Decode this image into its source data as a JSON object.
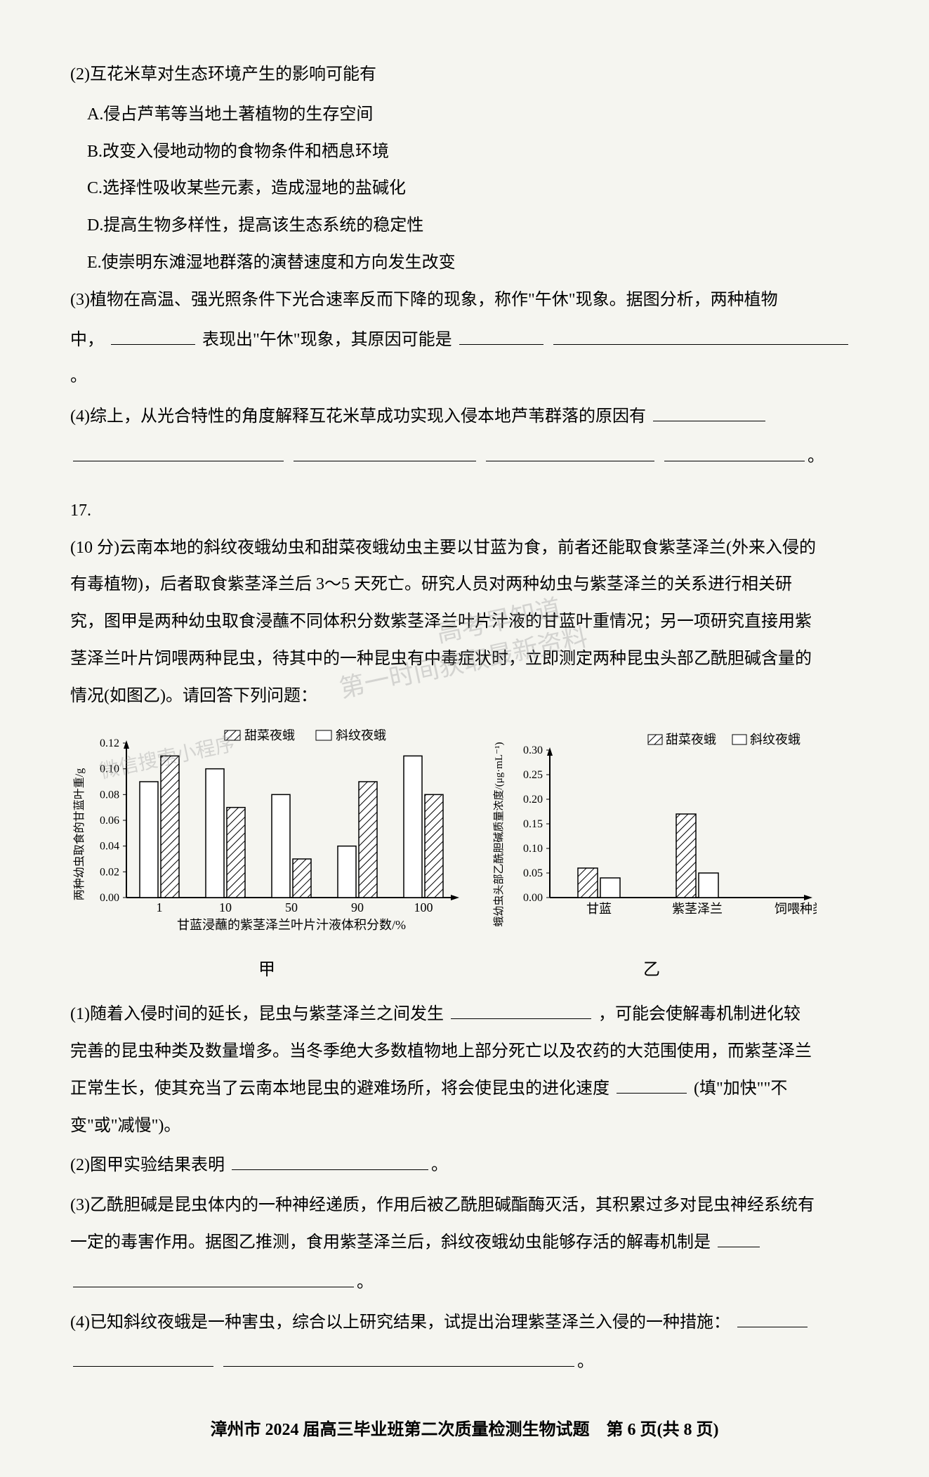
{
  "q16": {
    "q2_stem": "(2)互花米草对生态环境产生的影响可能有",
    "options": {
      "A": "A.侵占芦苇等当地土著植物的生存空间",
      "B": "B.改变入侵地动物的食物条件和栖息环境",
      "C": "C.选择性吸收某些元素，造成湿地的盐碱化",
      "D": "D.提高生物多样性，提高该生态系统的稳定性",
      "E": "E.使崇明东滩湿地群落的演替速度和方向发生改变"
    },
    "q3_a": "(3)植物在高温、强光照条件下光合速率反而下降的现象，称作\"午休\"现象。据图分析，两种植物",
    "q3_b": "中，",
    "q3_c": "表现出\"午休\"现象，其原因可能是",
    "q4_a": "(4)综上，从光合特性的角度解释互花米草成功实现入侵本地芦苇群落的原因有"
  },
  "q17": {
    "num": "17.",
    "stem_a": "(10 分)云南本地的斜纹夜蛾幼虫和甜菜夜蛾幼虫主要以甘蓝为食，前者还能取食紫茎泽兰(外来入侵的有毒植物)，后者取食紫茎泽兰后 3～5 天死亡。研究人员对两种幼虫与紫茎泽兰的关系进行相关研究，图甲是两种幼虫取食浸蘸不同体积分数紫茎泽兰叶片汁液的甘蓝叶重情况；另一项研究直接用紫茎泽兰叶片饲喂两种昆虫，待其中的一种昆虫有中毒症状时，立即测定两种昆虫头部乙酰胆碱含量的情况(如图乙)。请回答下列问题：",
    "q1_a": "(1)随着入侵时间的延长，昆虫与紫茎泽兰之间发生",
    "q1_b": "，可能会使解毒机制进化较完善的昆虫种类及数量增多。当冬季绝大多数植物地上部分死亡以及农药的大范围使用，而紫茎泽兰正常生长，使其充当了云南本地昆虫的避难场所，将会使昆虫的进化速度",
    "q1_c": "(填\"加快\"\"不变\"或\"减慢\")。",
    "q2_a": "(2)图甲实验结果表明",
    "q3_a": "(3)乙酰胆碱是昆虫体内的一种神经递质，作用后被乙酰胆碱酯酶灭活，其积累过多对昆虫神经系统有一定的毒害作用。据图乙推测，食用紫茎泽兰后，斜纹夜蛾幼虫能够存活的解毒机制是",
    "q4_a": "(4)已知斜纹夜蛾是一种害虫，综合以上研究结果，试提出治理紫茎泽兰入侵的一种措施："
  },
  "chart1": {
    "legend1": "甜菜夜蛾",
    "legend2": "斜纹夜蛾",
    "ylabel": "两种幼虫取食的甘蓝叶重/g",
    "xlabel": "甘蓝浸蘸的紫茎泽兰叶片汁液体积分数/%",
    "categories": [
      "1",
      "10",
      "50",
      "90",
      "100"
    ],
    "tianmenu": [
      0.09,
      0.1,
      0.08,
      0.04,
      0.11
    ],
    "xiewen": [
      0.11,
      0.07,
      0.03,
      0.09,
      0.08
    ],
    "ymax": 0.12,
    "yticks": [
      0,
      0.02,
      0.04,
      0.06,
      0.08,
      0.1,
      0.12
    ],
    "caption": "甲",
    "bg": "#ffffff",
    "axis_color": "#000000"
  },
  "chart2": {
    "legend1": "甜菜夜蛾",
    "legend2": "斜纹夜蛾",
    "ylabel": "蛾幼虫头部乙酰胆碱质量浓度/(μg·mL⁻¹)",
    "categories": [
      "甘蓝",
      "紫茎泽兰"
    ],
    "xlabel_suffix": "饲喂种类",
    "tianmenu": [
      0.06,
      0.17
    ],
    "xiewen": [
      0.04,
      0.05
    ],
    "ymax": 0.3,
    "yticks": [
      0.0,
      0.05,
      0.1,
      0.15,
      0.2,
      0.25,
      0.3
    ],
    "caption": "乙",
    "bg": "#ffffff",
    "axis_color": "#000000"
  },
  "watermarks": [
    "高考早知道",
    "微信搜索小程序",
    "第一时间获取最新资料"
  ],
  "footer": "漳州市 2024 届高三毕业班第二次质量检测生物试题　第 6 页(共 8 页)"
}
